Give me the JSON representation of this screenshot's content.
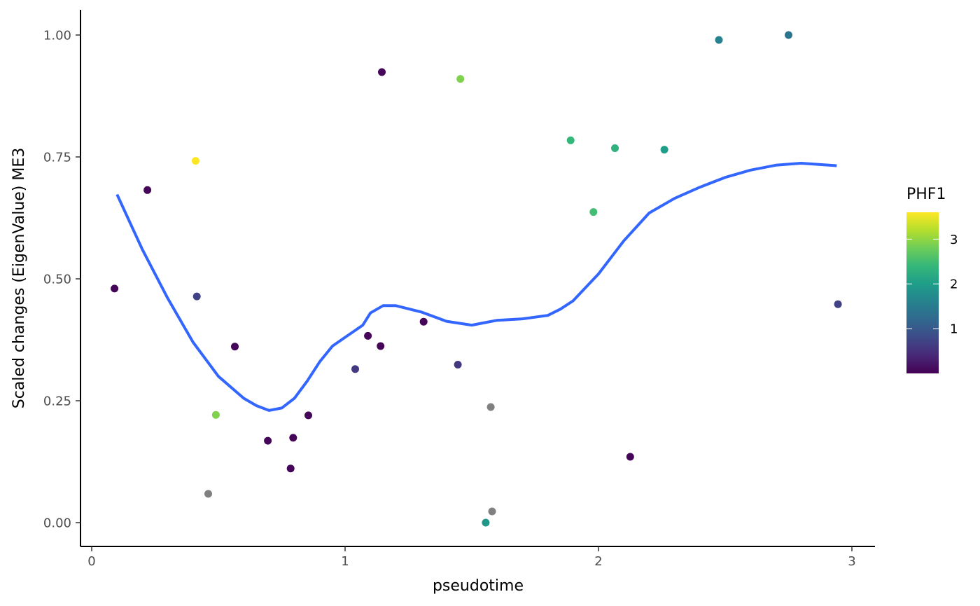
{
  "chart_data": {
    "type": "scatter",
    "xlabel": "pseudotime",
    "ylabel": "Scaled changes (EigenValue) ME3",
    "xlim": [
      -0.05,
      3.08
    ],
    "ylim": [
      -0.05,
      1.05
    ],
    "x_ticks": [
      0,
      1,
      2,
      3
    ],
    "x_tick_labels": [
      "0",
      "1",
      "2",
      "3"
    ],
    "y_ticks": [
      0,
      0.25,
      0.5,
      0.75,
      1.0
    ],
    "y_tick_labels": [
      "0.00",
      "0.25",
      "0.50",
      "0.75",
      "1.00"
    ],
    "grid": false,
    "legend": {
      "title": "PHF1",
      "position": "right",
      "type": "colorbar",
      "range": [
        0,
        3.6
      ],
      "breaks": [
        1,
        2,
        3
      ],
      "break_labels": [
        "1",
        "2",
        "3"
      ],
      "colors": [
        "#440154",
        "#482878",
        "#3E4A89",
        "#31688E",
        "#26828E",
        "#1F9E89",
        "#35B779",
        "#6DCD59",
        "#B4DE2C",
        "#FDE725"
      ]
    },
    "na_color": "#808080",
    "points": [
      {
        "x": 0.09,
        "y": 0.48,
        "color_value": 0.05
      },
      {
        "x": 0.22,
        "y": 0.682,
        "color_value": 0.05
      },
      {
        "x": 0.41,
        "y": 0.742,
        "color_value": 3.6
      },
      {
        "x": 0.415,
        "y": 0.464,
        "color_value": 0.7
      },
      {
        "x": 0.46,
        "y": 0.059,
        "color_value": null
      },
      {
        "x": 0.49,
        "y": 0.221,
        "color_value": 2.9
      },
      {
        "x": 0.565,
        "y": 0.361,
        "color_value": 0.05
      },
      {
        "x": 0.695,
        "y": 0.168,
        "color_value": 0.05
      },
      {
        "x": 0.785,
        "y": 0.111,
        "color_value": 0.05
      },
      {
        "x": 0.795,
        "y": 0.174,
        "color_value": 0.05
      },
      {
        "x": 0.855,
        "y": 0.22,
        "color_value": 0.05
      },
      {
        "x": 1.04,
        "y": 0.315,
        "color_value": 0.6
      },
      {
        "x": 1.09,
        "y": 0.383,
        "color_value": 0.05
      },
      {
        "x": 1.14,
        "y": 0.362,
        "color_value": 0.05
      },
      {
        "x": 1.145,
        "y": 0.924,
        "color_value": 0.05
      },
      {
        "x": 1.31,
        "y": 0.412,
        "color_value": 0.05
      },
      {
        "x": 1.445,
        "y": 0.324,
        "color_value": 0.6
      },
      {
        "x": 1.455,
        "y": 0.91,
        "color_value": 2.9
      },
      {
        "x": 1.555,
        "y": 0.0,
        "color_value": 1.9
      },
      {
        "x": 1.575,
        "y": 0.237,
        "color_value": null
      },
      {
        "x": 1.58,
        "y": 0.023,
        "color_value": null
      },
      {
        "x": 1.89,
        "y": 0.784,
        "color_value": 2.4
      },
      {
        "x": 1.98,
        "y": 0.637,
        "color_value": 2.5
      },
      {
        "x": 2.065,
        "y": 0.768,
        "color_value": 2.3
      },
      {
        "x": 2.125,
        "y": 0.135,
        "color_value": 0.05
      },
      {
        "x": 2.26,
        "y": 0.765,
        "color_value": 2.0
      },
      {
        "x": 2.475,
        "y": 0.99,
        "color_value": 1.6
      },
      {
        "x": 2.75,
        "y": 1.0,
        "color_value": 1.4
      },
      {
        "x": 2.945,
        "y": 0.448,
        "color_value": 0.7
      }
    ],
    "smooth_line": {
      "color": "#3366FF",
      "x": [
        0.1,
        0.2,
        0.3,
        0.4,
        0.5,
        0.6,
        0.65,
        0.7,
        0.75,
        0.8,
        0.85,
        0.9,
        0.95,
        1.0,
        1.07,
        1.1,
        1.15,
        1.2,
        1.3,
        1.4,
        1.5,
        1.55,
        1.6,
        1.7,
        1.8,
        1.85,
        1.9,
        2.0,
        2.1,
        2.2,
        2.3,
        2.4,
        2.5,
        2.6,
        2.7,
        2.8,
        2.94
      ],
      "y": [
        0.673,
        0.56,
        0.46,
        0.37,
        0.3,
        0.255,
        0.24,
        0.23,
        0.235,
        0.255,
        0.29,
        0.33,
        0.362,
        0.38,
        0.405,
        0.43,
        0.445,
        0.445,
        0.432,
        0.413,
        0.405,
        0.41,
        0.415,
        0.418,
        0.425,
        0.438,
        0.455,
        0.51,
        0.578,
        0.635,
        0.665,
        0.688,
        0.708,
        0.723,
        0.733,
        0.737,
        0.732
      ]
    }
  }
}
